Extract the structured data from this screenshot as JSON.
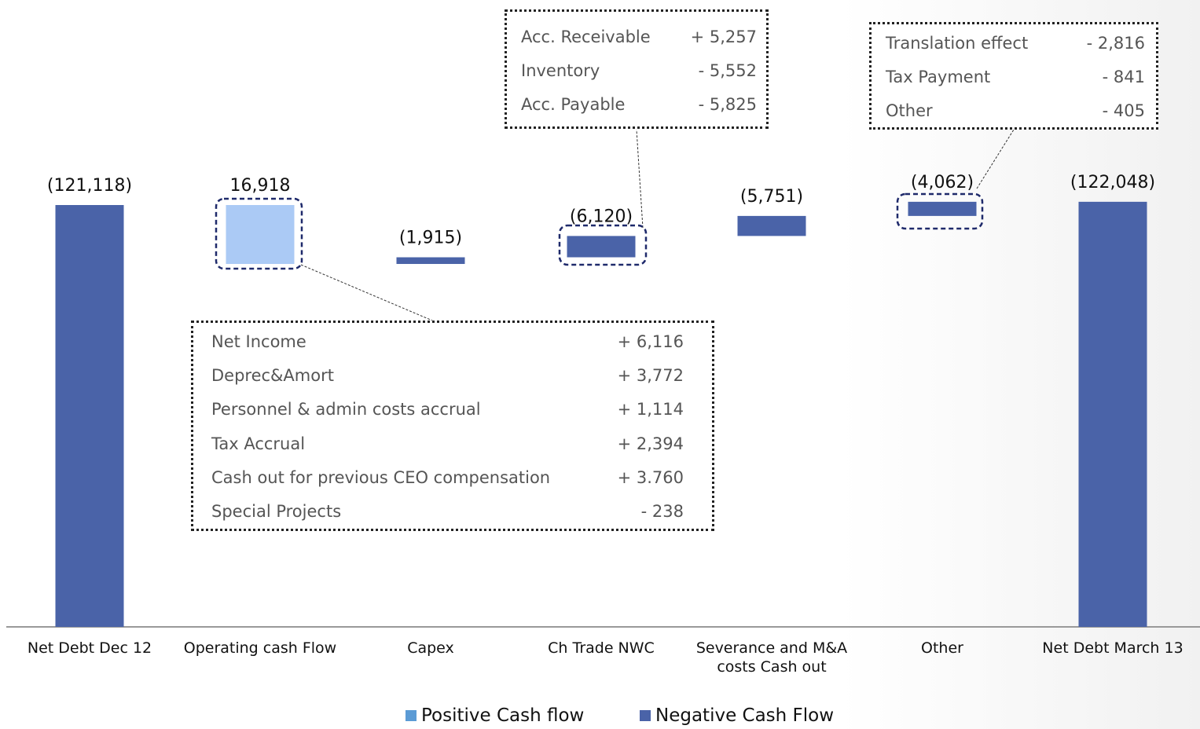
{
  "chart_data": {
    "type": "waterfall",
    "categories": [
      "Net Debt Dec 12",
      "Operating cash Flow",
      "Capex",
      "Ch Trade NWC",
      "Severance and M&A costs Cash out",
      "Other",
      "Net Debt March 13"
    ],
    "values": [
      -121118,
      16918,
      -1915,
      -6120,
      -5751,
      -4062,
      -122048
    ],
    "value_labels": [
      "(121,118)",
      "16,918",
      "(1,915)",
      "(6,120)",
      "(5,751)",
      "(4,062)",
      "(122,048)"
    ],
    "measure": [
      "absolute",
      "relative",
      "relative",
      "relative",
      "relative",
      "relative",
      "total"
    ],
    "colors": [
      "#4a63a8",
      "#abcaf5",
      "#4a63a8",
      "#4a63a8",
      "#4a63a8",
      "#4a63a8",
      "#4a63a8"
    ],
    "legend": [
      {
        "name": "Positive Cash flow",
        "color": "#5b9bd5"
      },
      {
        "name": "Negative Cash Flow",
        "color": "#4a63a8"
      }
    ],
    "annotations": [
      {
        "rows": [
          [
            "Acc. Receivable",
            "+ 5,257"
          ],
          [
            "Inventory",
            "- 5,552"
          ],
          [
            "Acc. Payable",
            "- 5,825"
          ]
        ]
      },
      {
        "rows": [
          [
            "Translation effect",
            "- 2,816"
          ],
          [
            "Tax Payment",
            "- 841"
          ],
          [
            "Other",
            "- 405"
          ]
        ]
      },
      {
        "rows": [
          [
            "Net Income",
            "+ 6,116"
          ],
          [
            "Deprec&Amort",
            "+ 3,772"
          ],
          [
            "Personnel & admin costs accrual",
            "+ 1,114"
          ],
          [
            "Tax Accrual",
            "+ 2,394"
          ],
          [
            "Cash out for previous CEO compensation",
            "+ 3.760"
          ],
          [
            "Special Projects",
            "- 238"
          ]
        ]
      }
    ]
  }
}
